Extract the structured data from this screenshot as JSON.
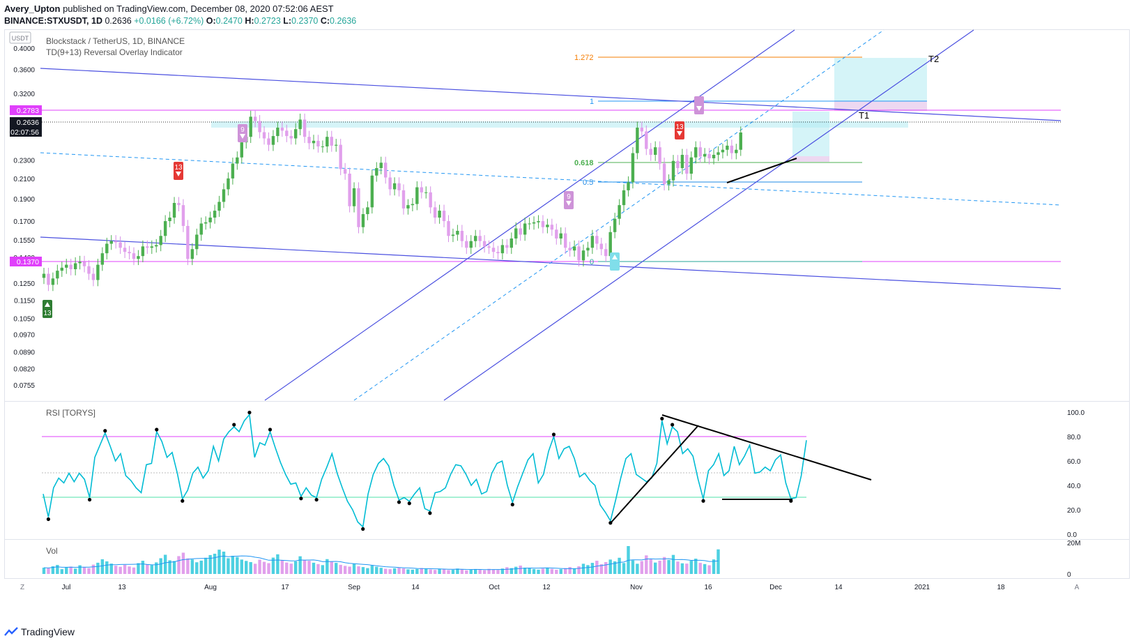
{
  "header": {
    "author": "Avery_Upton",
    "published_text": "published on TradingView.com, December 08, 2020 07:52:06 AEST",
    "symbol": "BINANCE:STXUSDT, 1D",
    "last": "0.2636",
    "change": "+0.0166 (+6.72%)",
    "o_label": "O:",
    "o": "0.2470",
    "h_label": "H:",
    "h": "0.2723",
    "l_label": "L:",
    "l": "0.2370",
    "c_label": "C:",
    "c": "0.2636"
  },
  "main_pane": {
    "title": "Blockstack / TetherUS, 1D, BINANCE",
    "indicator": "TD(9+13) Reversal Overlay Indicator",
    "currency_badge": "USDT",
    "price_labels": {
      "resistance": "0.2783",
      "last": "0.2636",
      "countdown": "02:07:56",
      "support": "0.1370"
    },
    "fib_labels": [
      "1.272",
      "1",
      "0.618",
      "0.5",
      "0"
    ],
    "target_labels": [
      "T1",
      "T2"
    ],
    "td_markers": [
      "13",
      "9",
      "9",
      "13",
      "9",
      "13"
    ]
  },
  "rsi_pane": {
    "title": "RSI [TORYS]"
  },
  "vol_pane": {
    "title": "Vol"
  },
  "footer": {
    "brand": "TradingView",
    "settings_glyph": "A",
    "tz_glyph": "Z"
  },
  "chart_data": [
    {
      "type": "line",
      "title": "Blockstack / TetherUS, 1D, BINANCE",
      "y_scale": "log",
      "ylim": [
        0.0735,
        0.41
      ],
      "y_ticks": [
        "0.4000",
        "0.3600",
        "0.3200",
        "0.2783",
        "0.2636",
        "0.2300",
        "0.2100",
        "0.1900",
        "0.1700",
        "0.1550",
        "0.1420",
        "0.1370",
        "0.1250",
        "0.1150",
        "0.1050",
        "0.0970",
        "0.0890",
        "0.0820",
        "0.0755"
      ],
      "x_ticks": [
        "Jul",
        "13",
        "Aug",
        "17",
        "Sep",
        "14",
        "Oct",
        "12",
        "Nov",
        "16",
        "Dec",
        "14",
        "2021",
        "18"
      ],
      "close": [
        0.131,
        0.124,
        0.128,
        0.133,
        0.135,
        0.137,
        0.134,
        0.138,
        0.139,
        0.136,
        0.131,
        0.127,
        0.137,
        0.145,
        0.152,
        0.154,
        0.153,
        0.149,
        0.146,
        0.145,
        0.141,
        0.143,
        0.15,
        0.149,
        0.15,
        0.151,
        0.158,
        0.17,
        0.173,
        0.186,
        0.184,
        0.166,
        0.141,
        0.148,
        0.159,
        0.168,
        0.169,
        0.173,
        0.179,
        0.187,
        0.199,
        0.21,
        0.226,
        0.233,
        0.251,
        0.258,
        0.285,
        0.279,
        0.264,
        0.256,
        0.248,
        0.259,
        0.27,
        0.266,
        0.259,
        0.256,
        0.268,
        0.281,
        0.258,
        0.25,
        0.253,
        0.246,
        0.246,
        0.258,
        0.247,
        0.248,
        0.22,
        0.215,
        0.183,
        0.2,
        0.165,
        0.176,
        0.182,
        0.213,
        0.221,
        0.227,
        0.211,
        0.199,
        0.205,
        0.198,
        0.181,
        0.184,
        0.185,
        0.201,
        0.196,
        0.196,
        0.182,
        0.173,
        0.179,
        0.17,
        0.158,
        0.159,
        0.162,
        0.154,
        0.149,
        0.154,
        0.158,
        0.154,
        0.15,
        0.149,
        0.146,
        0.145,
        0.151,
        0.149,
        0.156,
        0.164,
        0.159,
        0.168,
        0.168,
        0.169,
        0.17,
        0.165,
        0.167,
        0.163,
        0.156,
        0.16,
        0.149,
        0.147,
        0.15,
        0.14,
        0.147,
        0.149,
        0.158,
        0.152,
        0.148,
        0.143,
        0.161,
        0.172,
        0.184,
        0.198,
        0.206,
        0.238,
        0.27,
        0.265,
        0.243,
        0.236,
        0.245,
        0.226,
        0.204,
        0.208,
        0.229,
        0.221,
        0.236,
        0.215,
        0.233,
        0.245,
        0.234,
        0.237,
        0.232,
        0.236,
        0.239,
        0.242,
        0.247,
        0.238,
        0.242,
        0.2636
      ]
    },
    {
      "type": "line",
      "title": "RSI [TORYS]",
      "ylim": [
        0,
        100
      ],
      "y_ticks": [
        "100.0",
        "80.0",
        "60.0",
        "40.0",
        "20.0",
        "0.0"
      ],
      "levels": [
        80,
        50,
        30
      ],
      "rsi": [
        33,
        14,
        38,
        46,
        42,
        50,
        43,
        50,
        45,
        30,
        63,
        73,
        83,
        72,
        60,
        66,
        48,
        44,
        38,
        34,
        57,
        58,
        84,
        76,
        63,
        67,
        50,
        29,
        36,
        50,
        55,
        46,
        52,
        72,
        60,
        78,
        84,
        88,
        84,
        93,
        98,
        63,
        75,
        73,
        84,
        71,
        59,
        49,
        41,
        42,
        31,
        38,
        32,
        30,
        45,
        55,
        66,
        50,
        38,
        27,
        20,
        10,
        6,
        33,
        49,
        58,
        62,
        56,
        40,
        28,
        30,
        27,
        33,
        38,
        21,
        19,
        34,
        35,
        38,
        49,
        57,
        56,
        49,
        40,
        45,
        33,
        35,
        50,
        58,
        60,
        40,
        26,
        39,
        50,
        61,
        66,
        42,
        49,
        68,
        80,
        62,
        70,
        72,
        62,
        47,
        50,
        44,
        40,
        24,
        18,
        11,
        28,
        46,
        62,
        66,
        49,
        46,
        43,
        46,
        58,
        93,
        74,
        88,
        84,
        66,
        70,
        64,
        45,
        29,
        52,
        57,
        66,
        48,
        52,
        72,
        57,
        64,
        73,
        50,
        51,
        55,
        52,
        61,
        65,
        42,
        29,
        30,
        48,
        77
      ]
    },
    {
      "type": "bar",
      "title": "Vol",
      "ylim": [
        0,
        20000000
      ],
      "y_ticks": [
        "20M",
        "0"
      ],
      "volume_m": [
        4.2,
        3.8,
        5.1,
        6.0,
        3.2,
        4.5,
        4.9,
        3.6,
        5.8,
        4.4,
        3.9,
        6.2,
        7.5,
        9.8,
        8.4,
        6.9,
        5.5,
        4.8,
        6.1,
        5.0,
        4.3,
        7.2,
        8.8,
        6.4,
        5.9,
        7.7,
        10.5,
        12.8,
        9.1,
        8.6,
        11.9,
        14.2,
        10.4,
        9.7,
        7.8,
        8.9,
        10.8,
        12.6,
        13.5,
        16.2,
        14.9,
        10.5,
        12.1,
        11.3,
        9.6,
        8.7,
        7.9,
        6.8,
        9.5,
        8.1,
        7.2,
        10.9,
        13.1,
        9.3,
        7.6,
        6.9,
        8.4,
        11.8,
        9.2,
        8.8,
        7.5,
        6.6,
        5.9,
        9.9,
        8.3,
        7.4,
        6.1,
        5.4,
        4.9,
        6.7,
        5.1,
        4.6,
        3.9,
        5.6,
        4.8,
        4.1,
        3.5,
        3.2,
        3.8,
        4.4,
        3.7,
        3.1,
        2.9,
        3.3,
        3.9,
        3.4,
        3.0,
        2.7,
        3.5,
        3.2,
        2.6,
        2.8,
        3.6,
        3.1,
        2.4,
        2.9,
        3.3,
        2.8,
        2.5,
        3.4,
        2.9,
        2.7,
        3.6,
        4.5,
        3.9,
        4.8,
        5.6,
        4.2,
        3.8,
        3.3,
        2.9,
        3.6,
        4.1,
        3.4,
        2.8,
        3.2,
        3.9,
        4.6,
        3.5,
        5.1,
        6.8,
        5.9,
        7.4,
        8.8,
        6.5,
        7.9,
        9.6,
        8.4,
        10.8,
        7.3,
        18.6,
        9.1,
        6.8,
        8.6,
        12.4,
        9.8,
        7.6,
        8.9,
        11.3,
        9.4,
        12.7,
        8.3,
        7.1,
        6.9,
        8.8,
        10.2,
        7.4,
        6.6,
        5.8,
        9.7,
        16.4
      ]
    }
  ]
}
